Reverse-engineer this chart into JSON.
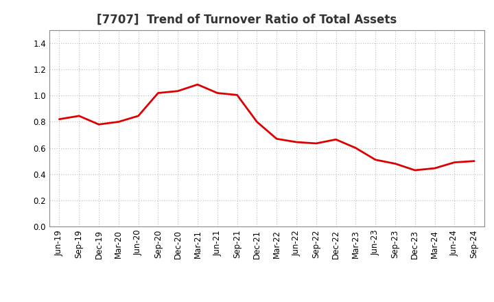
{
  "title": "[7707]  Trend of Turnover Ratio of Total Assets",
  "x_labels": [
    "Jun-19",
    "Sep-19",
    "Dec-19",
    "Mar-20",
    "Jun-20",
    "Sep-20",
    "Dec-20",
    "Mar-21",
    "Jun-21",
    "Sep-21",
    "Dec-21",
    "Mar-22",
    "Jun-22",
    "Sep-22",
    "Dec-22",
    "Mar-23",
    "Jun-23",
    "Sep-23",
    "Dec-23",
    "Mar-24",
    "Jun-24",
    "Sep-24"
  ],
  "y_values": [
    0.82,
    0.845,
    0.78,
    0.8,
    0.845,
    1.02,
    1.035,
    1.085,
    1.02,
    1.005,
    0.8,
    0.67,
    0.645,
    0.635,
    0.665,
    0.6,
    0.51,
    0.48,
    0.43,
    0.445,
    0.49,
    0.5
  ],
  "line_color": "#dd0000",
  "line_width": 2.0,
  "ylim": [
    0.0,
    1.5
  ],
  "yticks": [
    0.0,
    0.2,
    0.4,
    0.6,
    0.8,
    1.0,
    1.2,
    1.4
  ],
  "grid_color": "#bbbbbb",
  "background_color": "#ffffff",
  "title_fontsize": 12,
  "tick_fontsize": 8.5
}
